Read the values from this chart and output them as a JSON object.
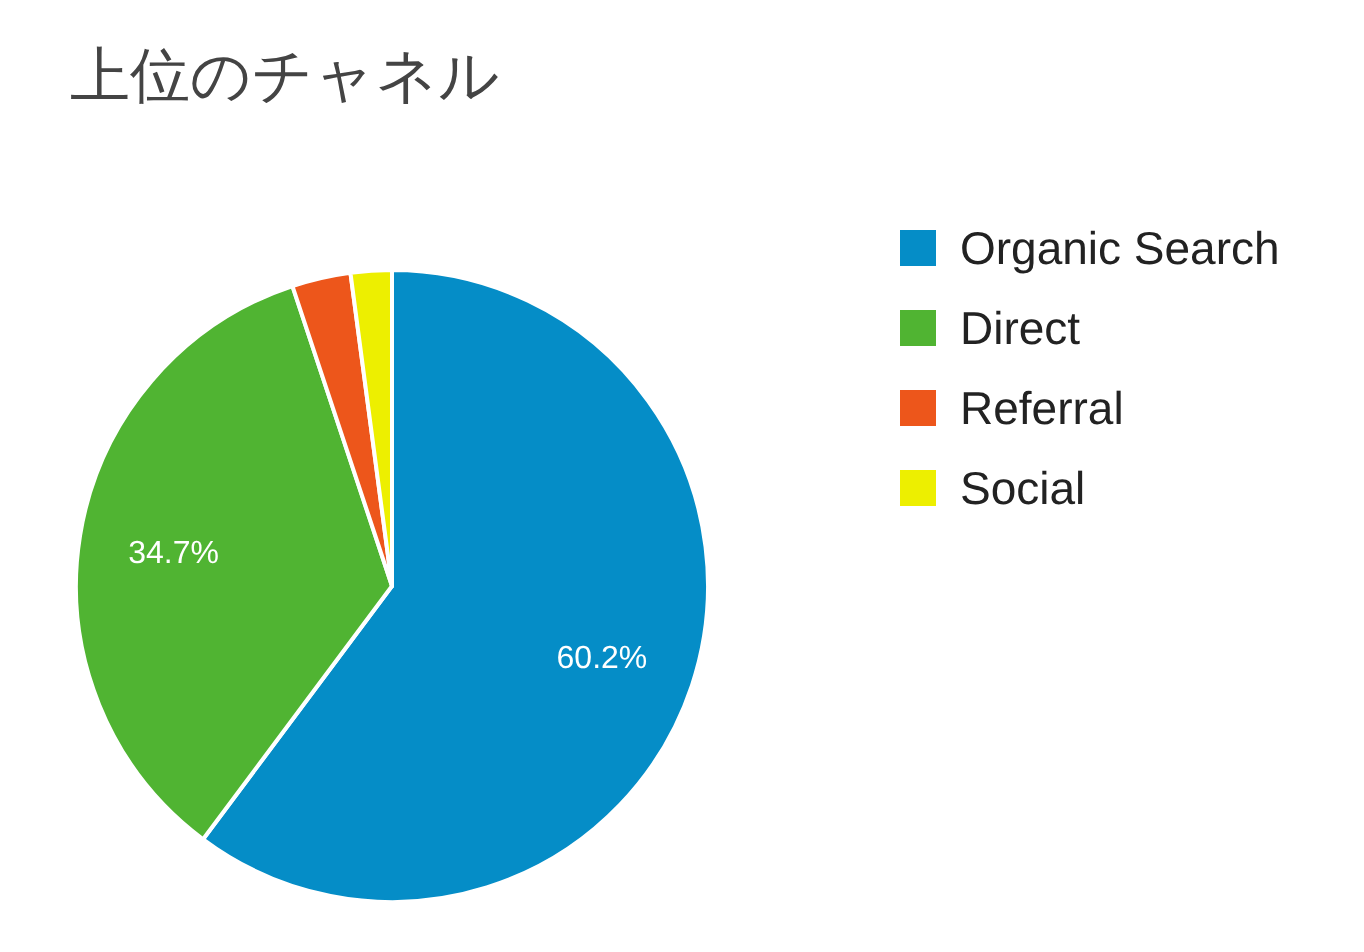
{
  "chart_data": {
    "type": "pie",
    "title": "上位のチャネル",
    "categories": [
      "Organic Search",
      "Direct",
      "Referral",
      "Social"
    ],
    "values": [
      60.2,
      34.7,
      3.0,
      2.1
    ],
    "colors": [
      "#058dc7",
      "#50b432",
      "#ed561b",
      "#edef00"
    ],
    "value_labels": [
      "60.2%",
      "34.7%",
      null,
      null
    ],
    "legend": "right"
  }
}
